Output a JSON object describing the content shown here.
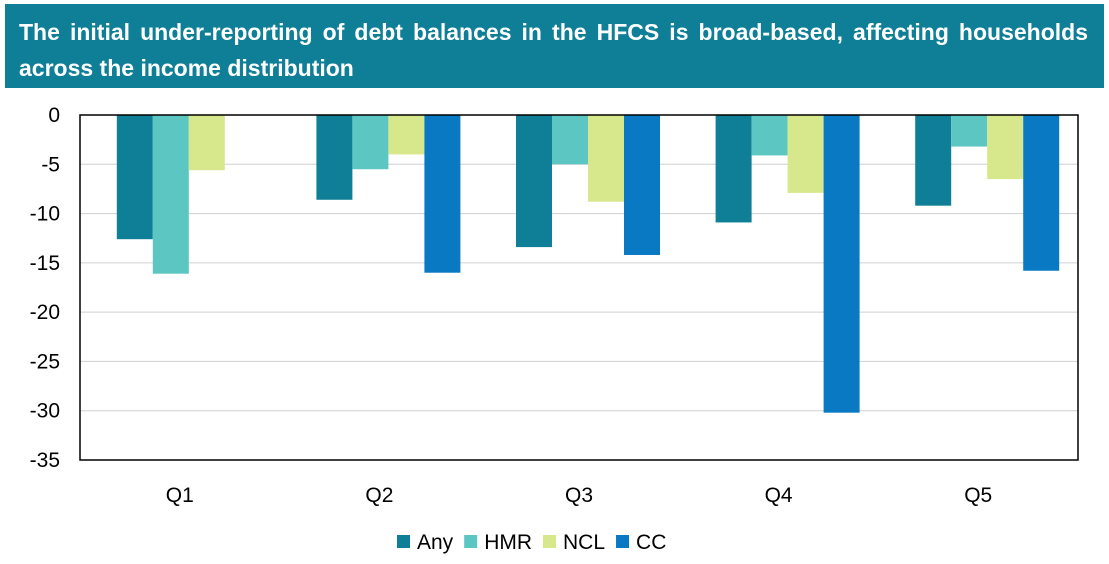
{
  "title": "The initial under-reporting of debt balances in the HFCS is broad-based, affecting households across the income distribution",
  "colors": {
    "banner": "#0f7f97",
    "Any": "#0f7f97",
    "HMR": "#5cc6c2",
    "NCL": "#d7e78c",
    "CC": "#0a79c4"
  },
  "chart_data": {
    "type": "bar",
    "title": "The initial under-reporting of debt balances in the HFCS is broad-based, affecting households across the income distribution",
    "categories": [
      "Q1",
      "Q2",
      "Q3",
      "Q4",
      "Q5"
    ],
    "series": [
      {
        "name": "Any",
        "values": [
          -12.6,
          -8.6,
          -13.4,
          -10.9,
          -9.2
        ]
      },
      {
        "name": "HMR",
        "values": [
          -16.1,
          -5.5,
          -5.0,
          -4.1,
          -3.2
        ]
      },
      {
        "name": "NCL",
        "values": [
          -5.6,
          -4.0,
          -8.8,
          -7.9,
          -6.5
        ]
      },
      {
        "name": "CC",
        "values": [
          null,
          -16.0,
          -14.2,
          -30.2,
          -15.8
        ]
      }
    ],
    "ylim": [
      -35,
      0
    ],
    "yticks": [
      "0",
      "-5",
      "-10",
      "-15",
      "-20",
      "-25",
      "-30",
      "-35"
    ],
    "grid": true,
    "legend": "bottom",
    "xlabel": "",
    "ylabel": ""
  }
}
